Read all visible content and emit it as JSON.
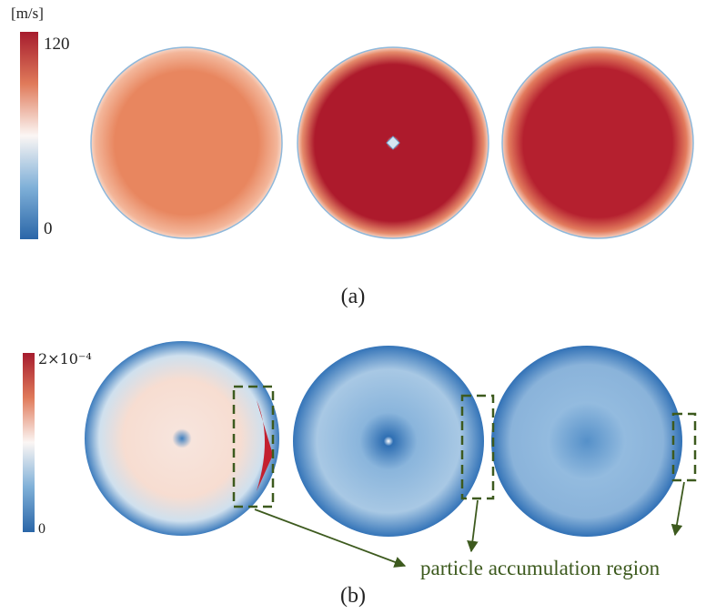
{
  "panel_a": {
    "unit": "[m/s]",
    "colorbar_labels": [
      "120",
      "0"
    ],
    "caption": "(a)"
  },
  "panel_b": {
    "colorbar_labels": [
      "2×10⁻⁴",
      "0"
    ],
    "annotation": "particle accumulation region",
    "caption": "(b)"
  }
}
